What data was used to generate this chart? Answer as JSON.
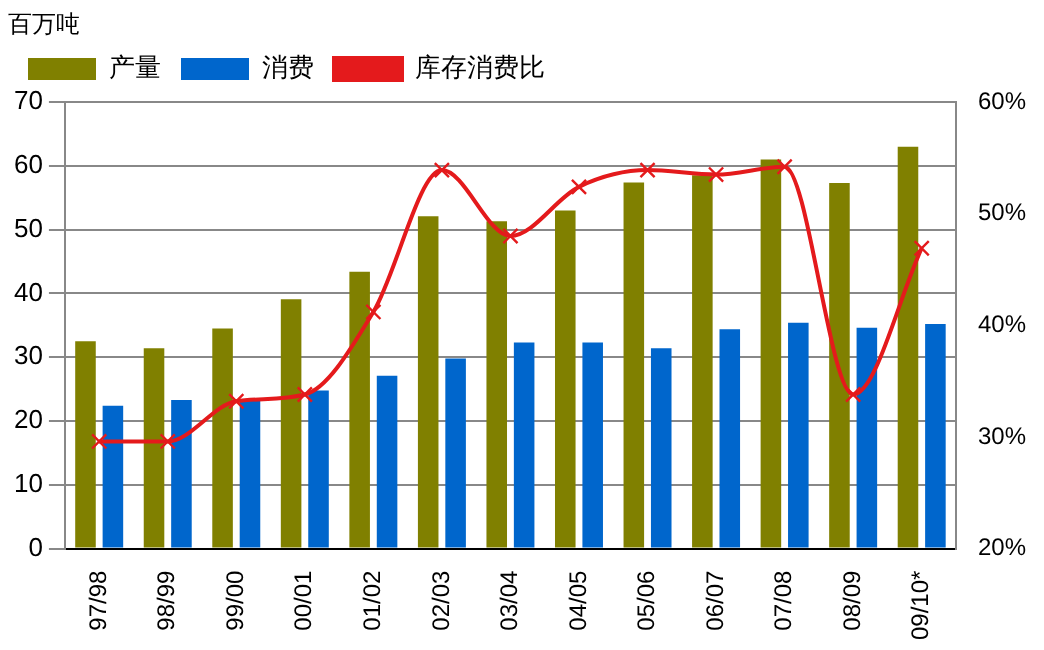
{
  "chart_data": {
    "type": "bar",
    "ylabel": "百万吨",
    "categories": [
      "97/98",
      "98/99",
      "99/00",
      "00/01",
      "01/02",
      "02/03",
      "03/04",
      "04/05",
      "05/06",
      "06/07",
      "07/08",
      "08/09",
      "09/10*"
    ],
    "series": [
      {
        "name": "产量",
        "color": "#808000",
        "values": [
          32.5,
          31.4,
          34.5,
          39.1,
          43.4,
          52.1,
          51.3,
          53,
          57.4,
          58.5,
          61,
          57.3,
          63
        ]
      },
      {
        "name": "消费",
        "color": "#0066cc",
        "values": [
          22.4,
          23.3,
          23.4,
          24.8,
          27.1,
          29.8,
          32.3,
          32.3,
          31.4,
          34.4,
          35.4,
          34.6,
          35.2
        ]
      },
      {
        "name": "库存消费比",
        "type": "line",
        "axis": "y2",
        "color": "#e41a1c",
        "marker": "cross",
        "values": [
          29.6,
          29.6,
          33.2,
          33.8,
          41.2,
          53.9,
          48.0,
          52.4,
          53.9,
          53.5,
          54.2,
          33.8,
          46.9
        ]
      }
    ],
    "ylim": [
      0,
      70
    ],
    "yticks": [
      0,
      10,
      20,
      30,
      40,
      50,
      60,
      70
    ],
    "y2lim": [
      20,
      60
    ],
    "y2ticks": [
      {
        "value": 20,
        "label": "20%"
      },
      {
        "value": 30,
        "label": "30%"
      },
      {
        "value": 40,
        "label": "40%"
      },
      {
        "value": 50,
        "label": "50%"
      },
      {
        "value": 60,
        "label": "60%"
      }
    ],
    "grid": "y",
    "legend": "top left"
  }
}
